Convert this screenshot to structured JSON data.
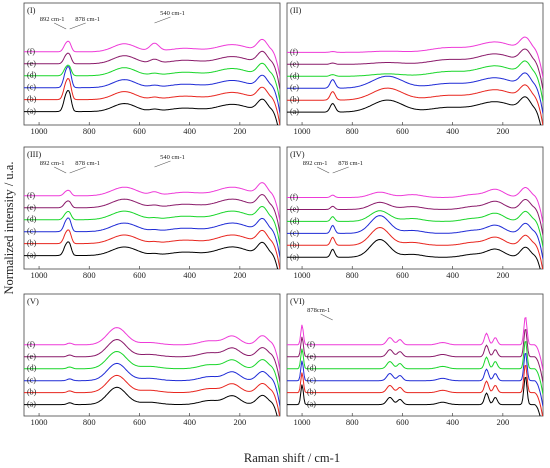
{
  "chart_data": {
    "type": "line",
    "xlabel": "Raman shift / cm-1",
    "ylabel": "Normalized intensity / u.a.",
    "x_reversed": true,
    "xlim": [
      1060,
      40
    ],
    "xticks": [
      1000,
      800,
      600,
      400,
      200
    ],
    "series_labels": [
      "(a)",
      "(b)",
      "(c)",
      "(d)",
      "(e)",
      "(f)"
    ],
    "series_colors": [
      "#000000",
      "#e8261f",
      "#1f2bd6",
      "#19d62a",
      "#8a1a6a",
      "#ee3ad8"
    ],
    "panels": [
      {
        "label": "(I)",
        "annotations": [
          {
            "text": "892 cm-1",
            "x": 892
          },
          {
            "text": "878 cm-1",
            "x": 878
          },
          {
            "text": "540 cm-1",
            "x": 540
          }
        ],
        "peaks": [
          [
            892,
            0.55,
            10
          ],
          [
            878,
            0.45,
            8
          ],
          [
            660,
            0.28,
            45
          ],
          [
            540,
            0.22,
            18
          ],
          [
            420,
            0.12,
            60
          ],
          [
            230,
            0.25,
            60
          ],
          [
            110,
            0.4,
            20
          ]
        ],
        "base": 0.12,
        "emph": [
          1,
          1,
          1,
          0.5,
          0.5,
          0.5
        ],
        "growth": [
          0,
          0,
          0,
          0,
          0.2,
          0.6
        ]
      },
      {
        "label": "(II)",
        "annotations": [],
        "peaks": [
          [
            878,
            0.3,
            10
          ],
          [
            660,
            0.42,
            60
          ],
          [
            420,
            0.16,
            70
          ],
          [
            230,
            0.36,
            70
          ],
          [
            110,
            0.45,
            22
          ]
        ],
        "base": 0.1,
        "emph": [
          1,
          1,
          1,
          0.2,
          0.15,
          0.1
        ],
        "growth": [
          0,
          0,
          0,
          0,
          0,
          0
        ]
      },
      {
        "label": "(III)",
        "annotations": [
          {
            "text": "892 cm-1",
            "x": 892
          },
          {
            "text": "878 cm-1",
            "x": 878
          },
          {
            "text": "540 cm-1",
            "x": 540
          }
        ],
        "peaks": [
          [
            892,
            0.35,
            10
          ],
          [
            878,
            0.3,
            8
          ],
          [
            660,
            0.3,
            50
          ],
          [
            540,
            0.14,
            18
          ],
          [
            420,
            0.12,
            60
          ],
          [
            230,
            0.3,
            60
          ],
          [
            110,
            0.42,
            20
          ]
        ],
        "base": 0.12,
        "emph": [
          1,
          1,
          1,
          0.6,
          0.5,
          0.4
        ],
        "growth": [
          0,
          0,
          0,
          0,
          0.1,
          0.3
        ]
      },
      {
        "label": "(IV)",
        "annotations": [
          {
            "text": "892 cm-1",
            "x": 892
          },
          {
            "text": "878 cm-1",
            "x": 878
          }
        ],
        "peaks": [
          [
            878,
            0.28,
            8
          ],
          [
            690,
            0.62,
            38
          ],
          [
            560,
            0.1,
            40
          ],
          [
            320,
            0.1,
            40
          ],
          [
            230,
            0.28,
            35
          ],
          [
            110,
            0.35,
            20
          ]
        ],
        "base": 0.06,
        "emph": [
          1,
          1,
          1,
          0.6,
          0.4,
          0.3
        ],
        "growth": [
          0,
          0,
          0,
          0,
          0,
          0
        ]
      },
      {
        "label": "(V)",
        "annotations": [],
        "peaks": [
          [
            878,
            0.06,
            10
          ],
          [
            690,
            0.6,
            38
          ],
          [
            560,
            0.08,
            40
          ],
          [
            320,
            0.14,
            40
          ],
          [
            230,
            0.3,
            30
          ],
          [
            110,
            0.32,
            22
          ]
        ],
        "base": 0.05,
        "emph": [
          1,
          1,
          1,
          1,
          1,
          1
        ],
        "growth": [
          0,
          0,
          0,
          0,
          0,
          0
        ]
      },
      {
        "label": "(VI)",
        "annotations": [
          {
            "text": "878cm-1",
            "x": 878
          }
        ],
        "peaks": [
          [
            1000,
            0.7,
            5
          ],
          [
            650,
            0.25,
            12
          ],
          [
            610,
            0.18,
            10
          ],
          [
            440,
            0.08,
            20
          ],
          [
            265,
            0.4,
            8
          ],
          [
            230,
            0.25,
            8
          ],
          [
            110,
            1.0,
            6
          ]
        ],
        "base": 0.05,
        "emph": [
          1,
          1,
          1,
          1,
          1,
          1
        ],
        "growth": [
          0,
          0,
          0,
          0,
          0,
          0
        ]
      }
    ]
  }
}
